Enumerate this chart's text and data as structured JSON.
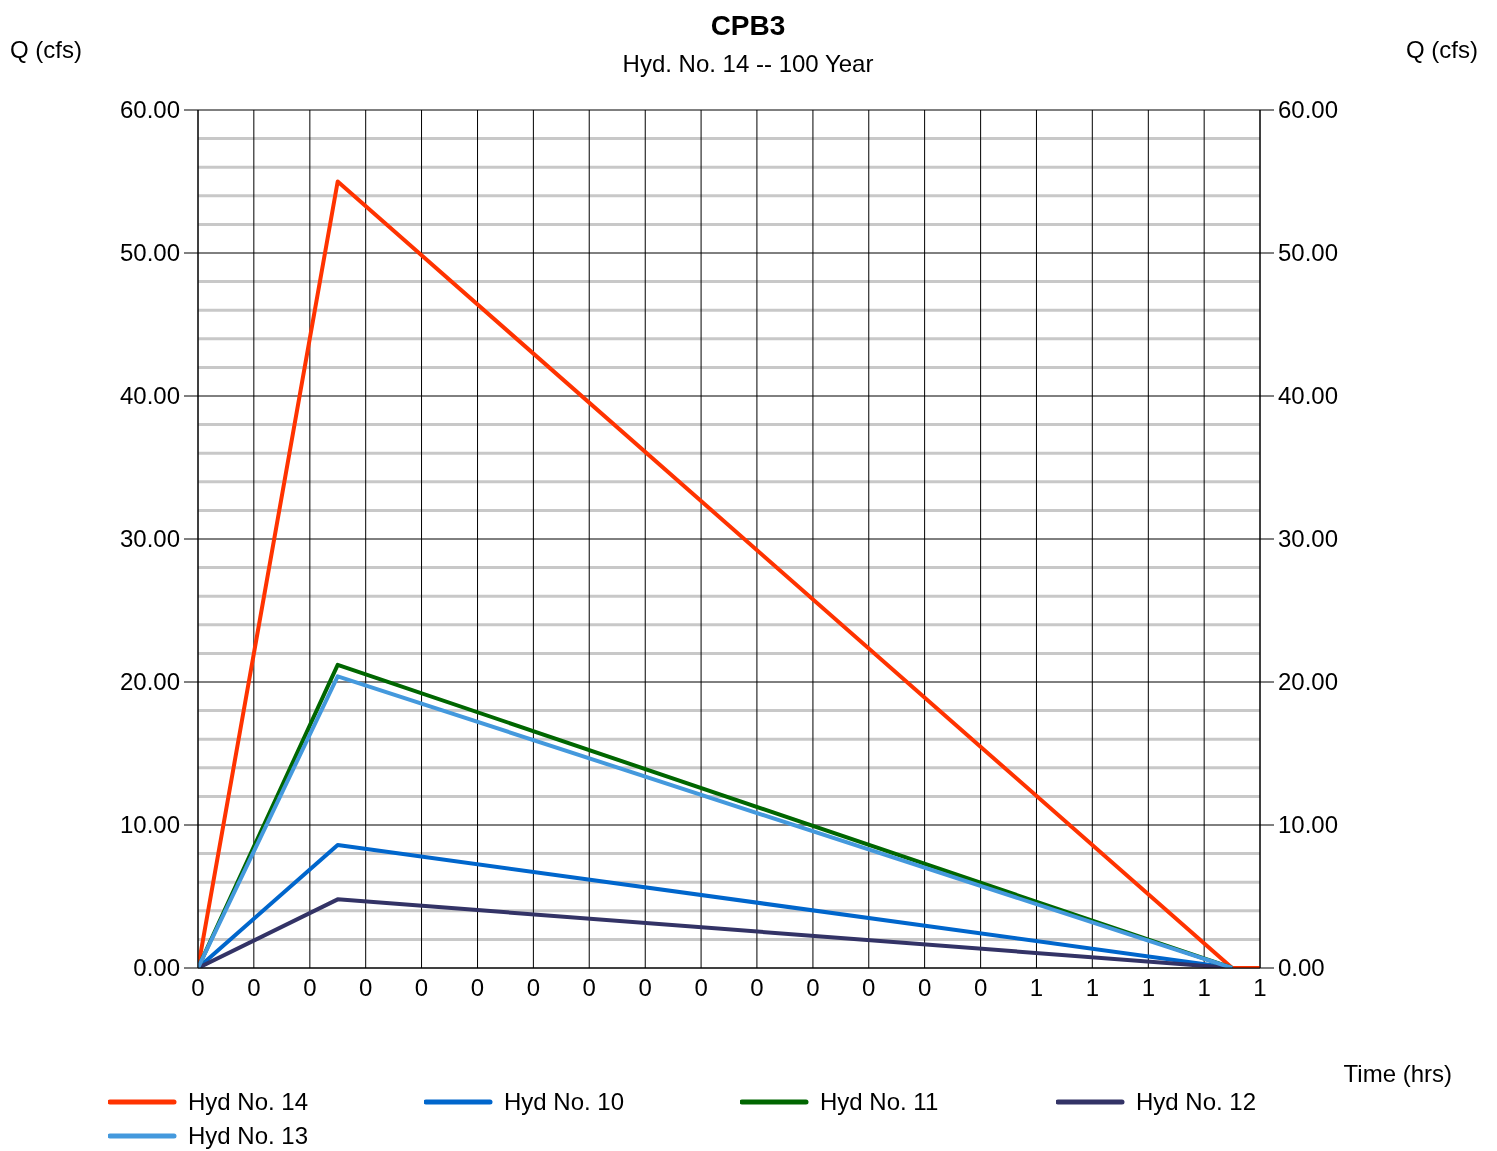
{
  "chart_data": {
    "type": "line",
    "title": "CPB3",
    "subtitle": "Hyd. No. 14 -- 100 Year",
    "xlabel": "Time (hrs)",
    "ylabel": "Q (cfs)",
    "y2label": "Q (cfs)",
    "xlim": [
      0,
      0.6333
    ],
    "xticks": [
      {
        "value": 0,
        "label": "0"
      },
      {
        "value": 0.0333,
        "label": "0"
      },
      {
        "value": 0.0667,
        "label": "0"
      },
      {
        "value": 0.1,
        "label": "0"
      },
      {
        "value": 0.1333,
        "label": "0"
      },
      {
        "value": 0.1667,
        "label": "0"
      },
      {
        "value": 0.2,
        "label": "0"
      },
      {
        "value": 0.2333,
        "label": "0"
      },
      {
        "value": 0.2667,
        "label": "0"
      },
      {
        "value": 0.3,
        "label": "0"
      },
      {
        "value": 0.3333,
        "label": "0"
      },
      {
        "value": 0.3667,
        "label": "0"
      },
      {
        "value": 0.4,
        "label": "0"
      },
      {
        "value": 0.4333,
        "label": "0"
      },
      {
        "value": 0.4667,
        "label": "0"
      },
      {
        "value": 0.5,
        "label": "1"
      },
      {
        "value": 0.5333,
        "label": "1"
      },
      {
        "value": 0.5667,
        "label": "1"
      },
      {
        "value": 0.6,
        "label": "1"
      },
      {
        "value": 0.6333,
        "label": "1"
      }
    ],
    "ylim": [
      0,
      60
    ],
    "yticks": [
      {
        "value": 0,
        "label": "0.00"
      },
      {
        "value": 2,
        "label": null
      },
      {
        "value": 4,
        "label": null
      },
      {
        "value": 6,
        "label": null
      },
      {
        "value": 8,
        "label": null
      },
      {
        "value": 10,
        "label": "10.00"
      },
      {
        "value": 12,
        "label": null
      },
      {
        "value": 14,
        "label": null
      },
      {
        "value": 16,
        "label": null
      },
      {
        "value": 18,
        "label": null
      },
      {
        "value": 20,
        "label": "20.00"
      },
      {
        "value": 22,
        "label": null
      },
      {
        "value": 24,
        "label": null
      },
      {
        "value": 26,
        "label": null
      },
      {
        "value": 28,
        "label": null
      },
      {
        "value": 30,
        "label": "30.00"
      },
      {
        "value": 32,
        "label": null
      },
      {
        "value": 34,
        "label": null
      },
      {
        "value": 36,
        "label": null
      },
      {
        "value": 38,
        "label": null
      },
      {
        "value": 40,
        "label": "40.00"
      },
      {
        "value": 42,
        "label": null
      },
      {
        "value": 44,
        "label": null
      },
      {
        "value": 46,
        "label": null
      },
      {
        "value": 48,
        "label": null
      },
      {
        "value": 50,
        "label": "50.00"
      },
      {
        "value": 52,
        "label": null
      },
      {
        "value": 54,
        "label": null
      },
      {
        "value": 56,
        "label": null
      },
      {
        "value": 58,
        "label": null
      },
      {
        "value": 60,
        "label": "60.00"
      }
    ],
    "y2lim": [
      0,
      60
    ],
    "y2ticks": [
      {
        "value": 0,
        "label": "0.00"
      },
      {
        "value": 10,
        "label": "10.00"
      },
      {
        "value": 20,
        "label": "20.00"
      },
      {
        "value": 30,
        "label": "30.00"
      },
      {
        "value": 40,
        "label": "40.00"
      },
      {
        "value": 50,
        "label": "50.00"
      },
      {
        "value": 60,
        "label": "60.00"
      }
    ],
    "grid": true,
    "legend": "bottom",
    "marker": "none",
    "line_style": "solid",
    "series": [
      {
        "name": "Hyd No. 14",
        "color": "#ff3300",
        "x": [
          0,
          0.0833,
          0.6167,
          0.6333
        ],
        "values": [
          0,
          55.0,
          0,
          0
        ]
      },
      {
        "name": "Hyd No. 10",
        "color": "#0066cc",
        "x": [
          0,
          0.0833,
          0.6167
        ],
        "values": [
          0,
          8.6,
          0
        ]
      },
      {
        "name": "Hyd No. 11",
        "color": "#006600",
        "x": [
          0,
          0.0833,
          0.6167
        ],
        "values": [
          0,
          21.2,
          0
        ]
      },
      {
        "name": "Hyd No. 12",
        "color": "#333366",
        "x": [
          0,
          0.0833,
          0.6167
        ],
        "values": [
          0,
          4.8,
          0
        ]
      },
      {
        "name": "Hyd No. 13",
        "color": "#4499dd",
        "x": [
          0,
          0.0833,
          0.6167
        ],
        "values": [
          0,
          20.4,
          0
        ]
      }
    ]
  }
}
